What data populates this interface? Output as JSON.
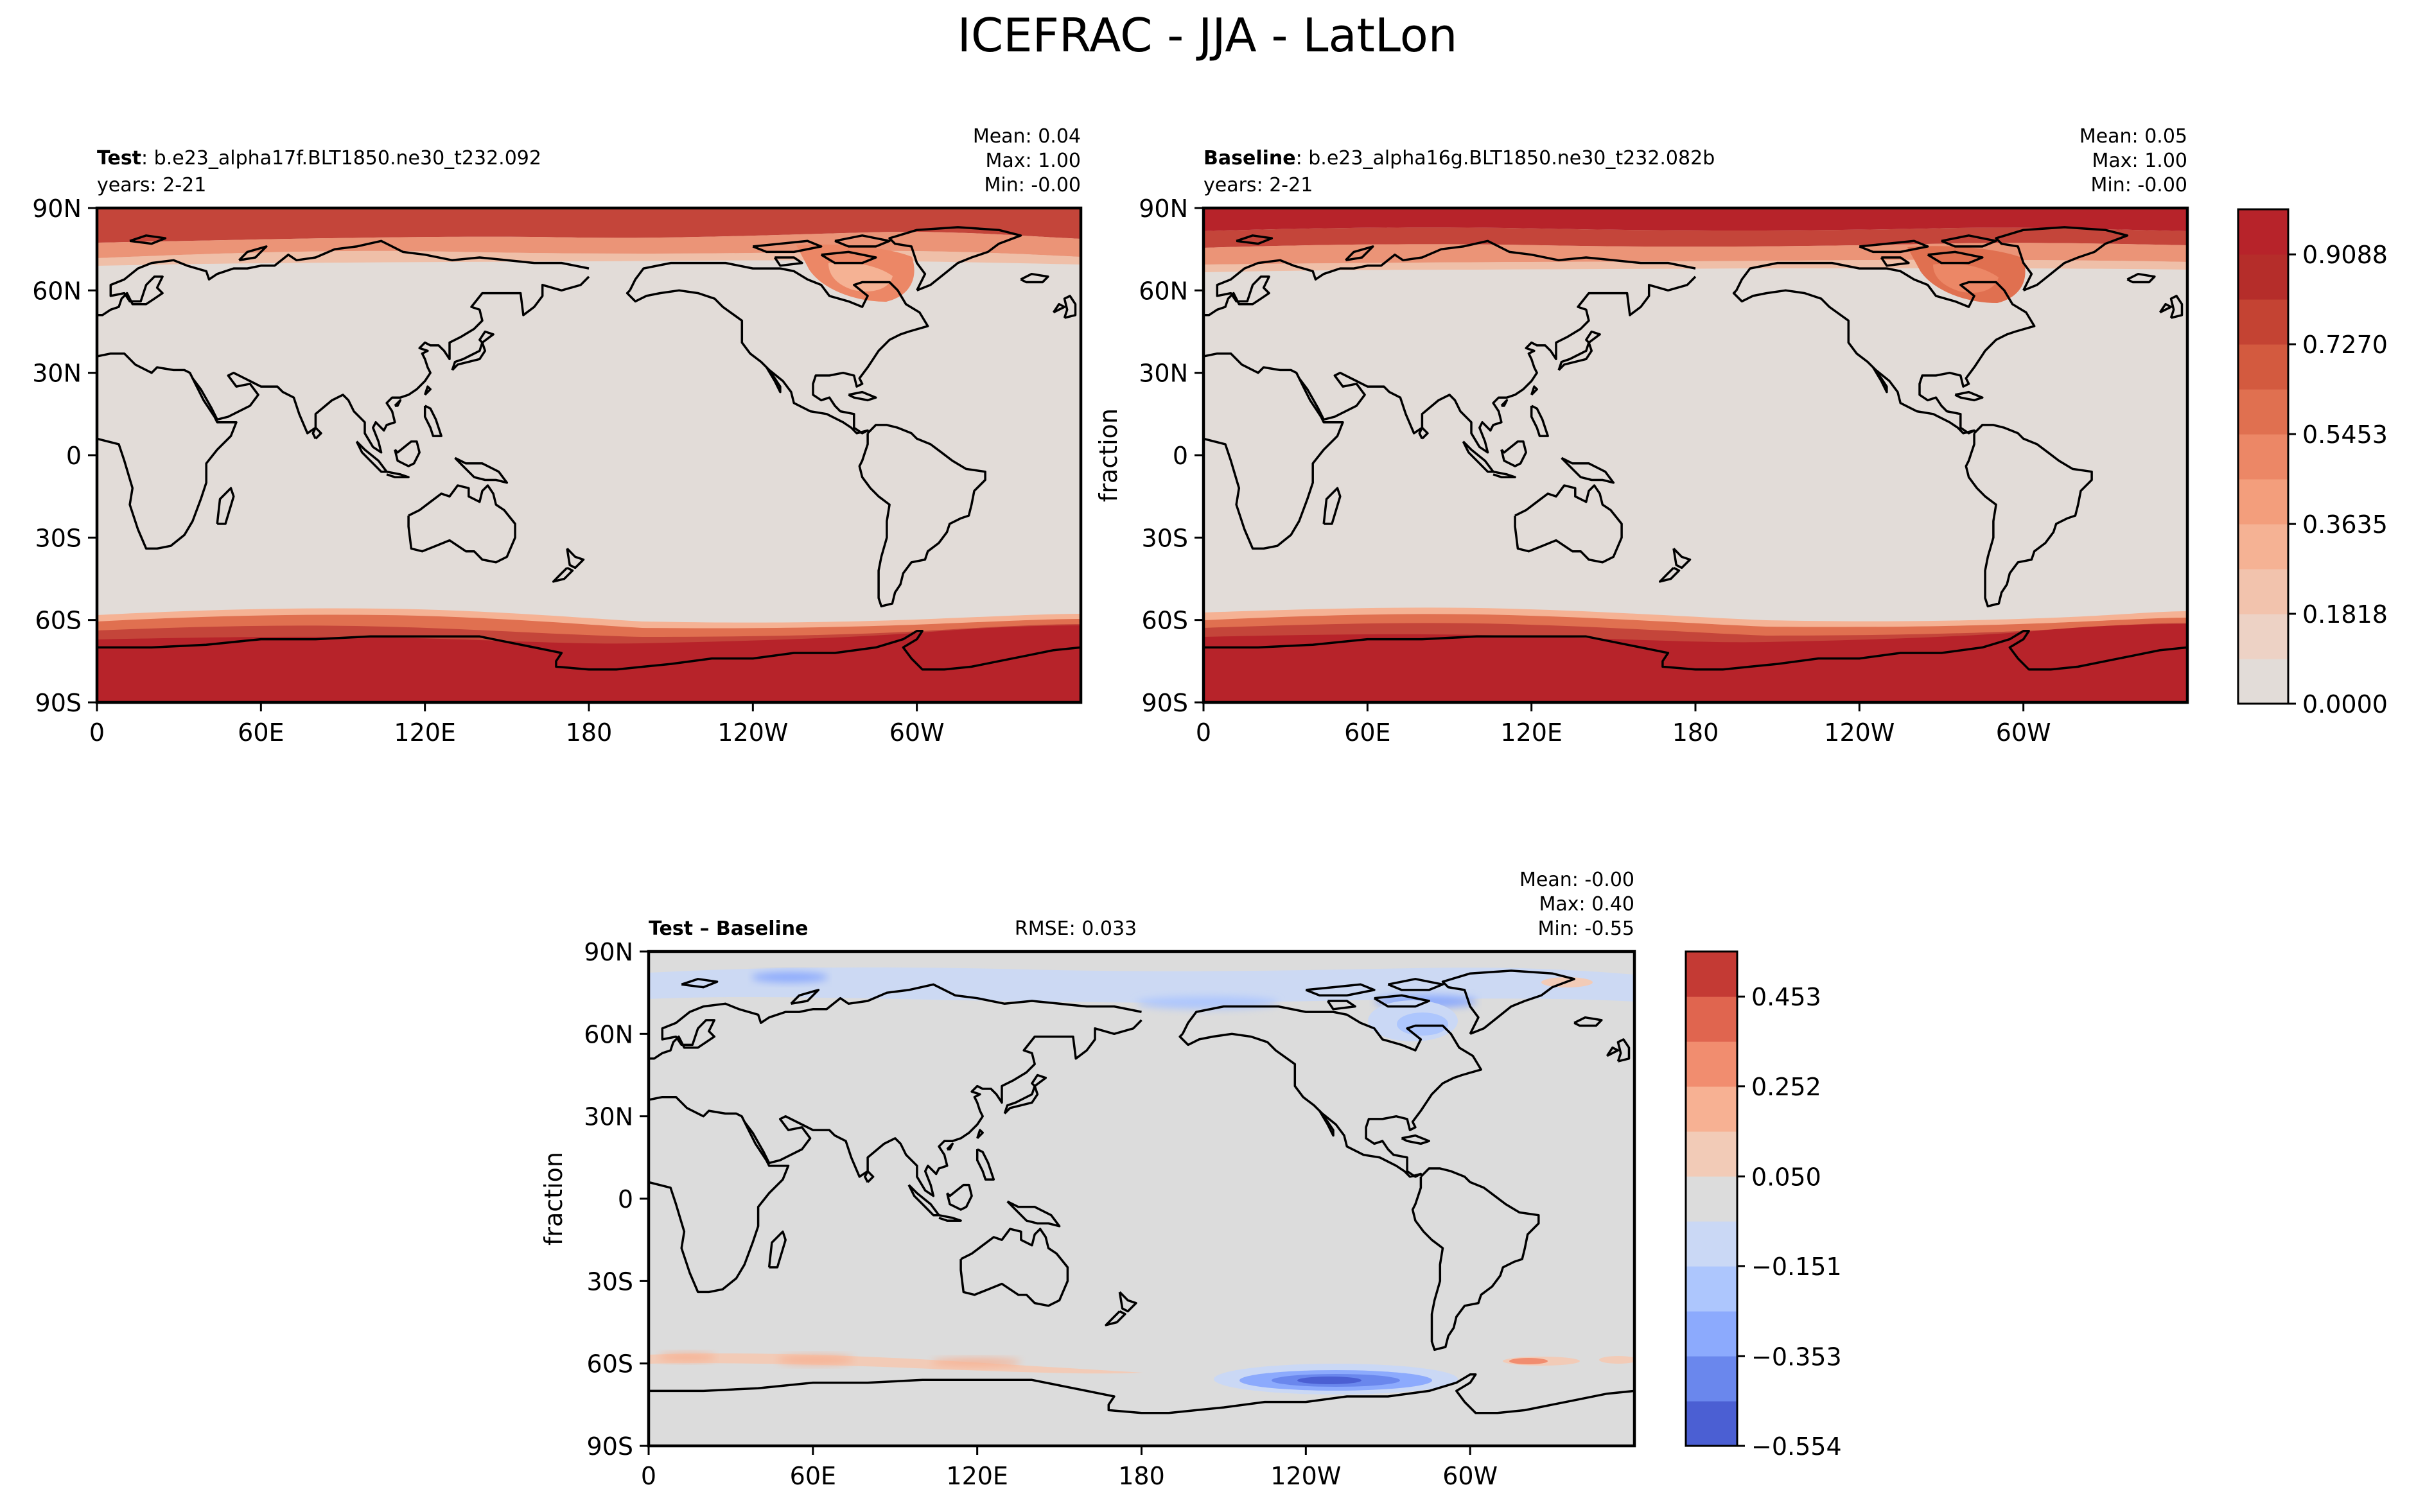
{
  "figure_title": "ICEFRAC - JJA - LatLon",
  "chart_data": [
    {
      "type": "heatmap",
      "panel": "test",
      "label_bold": "Test",
      "label_rest": ": b.e23_alpha17f.BLT1850.ne30_t232.092",
      "years": "years: 2-21",
      "stats": [
        "Mean:  0.04",
        "Max:  1.00",
        "Min: -0.00"
      ],
      "x_ticks": [
        "0",
        "60E",
        "120E",
        "180",
        "120W",
        "60W"
      ],
      "x_tick_values": [
        0,
        60,
        120,
        180,
        240,
        300
      ],
      "y_ticks": [
        "90N",
        "60N",
        "30N",
        "0",
        "30S",
        "60S",
        "90S"
      ],
      "y_tick_values": [
        90,
        60,
        30,
        0,
        -30,
        -60,
        -90
      ],
      "xlim": [
        0,
        360
      ],
      "ylim": [
        -90,
        90
      ],
      "ylabel": ""
    },
    {
      "type": "heatmap",
      "panel": "baseline",
      "label_bold": "Baseline",
      "label_rest": ": b.e23_alpha16g.BLT1850.ne30_t232.082b",
      "years": "years: 2-21",
      "stats": [
        "Mean:  0.05",
        "Max:  1.00",
        "Min: -0.00"
      ],
      "x_ticks": [
        "0",
        "60E",
        "120E",
        "180",
        "120W",
        "60W"
      ],
      "x_tick_values": [
        0,
        60,
        120,
        180,
        240,
        300
      ],
      "y_ticks": [
        "90N",
        "60N",
        "30N",
        "0",
        "30S",
        "60S",
        "90S"
      ],
      "y_tick_values": [
        90,
        60,
        30,
        0,
        -30,
        -60,
        -90
      ],
      "xlim": [
        0,
        360
      ],
      "ylim": [
        -90,
        90
      ],
      "ylabel": "fraction",
      "colorbar": {
        "ticks": [
          "0.9088",
          "0.7270",
          "0.5453",
          "0.3635",
          "0.1818",
          "0.0000"
        ],
        "tick_values": [
          0.9088,
          0.727,
          0.5453,
          0.3635,
          0.1818,
          0.0
        ],
        "range": [
          0.0,
          1.0
        ],
        "levels": 11,
        "colors": [
          "#e2dcd8",
          "#edd2c5",
          "#f2c3ad",
          "#f5b294",
          "#f39e7c",
          "#ec8766",
          "#e07050",
          "#d35a3f",
          "#c44333",
          "#b52d2a",
          "#b7232a"
        ]
      }
    },
    {
      "type": "heatmap",
      "panel": "difference",
      "label_bold": "Test – Baseline",
      "rmse": "RMSE: 0.033",
      "stats": [
        "Mean: -0.00",
        "Max:  0.40",
        "Min: -0.55"
      ],
      "x_ticks": [
        "0",
        "60E",
        "120E",
        "180",
        "120W",
        "60W"
      ],
      "x_tick_values": [
        0,
        60,
        120,
        180,
        240,
        300
      ],
      "y_ticks": [
        "90N",
        "60N",
        "30N",
        "0",
        "30S",
        "60S",
        "90S"
      ],
      "y_tick_values": [
        90,
        60,
        30,
        0,
        -30,
        -60,
        -90
      ],
      "xlim": [
        0,
        360
      ],
      "ylim": [
        -90,
        90
      ],
      "ylabel": "fraction",
      "colorbar": {
        "ticks": [
          "0.453",
          "0.252",
          "0.050",
          "−0.151",
          "−0.353",
          "−0.554"
        ],
        "tick_values": [
          0.453,
          0.252,
          0.05,
          -0.151,
          -0.353,
          -0.554
        ],
        "range": [
          -0.554,
          0.554
        ],
        "levels": 11,
        "colors": [
          "#4b5fd3",
          "#6a87ed",
          "#8caafd",
          "#adc6fd",
          "#cad8f5",
          "#dcdcdc",
          "#f2cbb7",
          "#f7b193",
          "#f18d6f",
          "#e0654f",
          "#c43a34"
        ]
      }
    }
  ]
}
